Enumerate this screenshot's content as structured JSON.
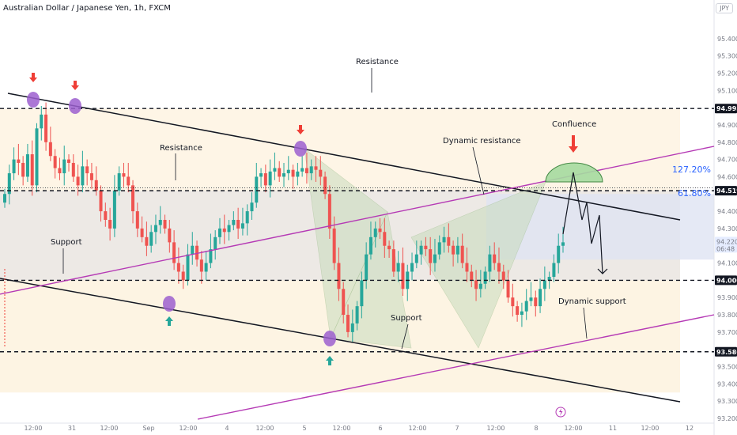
{
  "header": {
    "title": "Australian Dollar / Japanese Yen, 1h, FXCM"
  },
  "currency": "JPY",
  "colors": {
    "up": "#26a69a",
    "down": "#ef5350",
    "band_top": "#fdf1dc",
    "band_mid": "#e9e4df",
    "band_bottom": "#fdf1dc",
    "fib_band": "#dfe4f2",
    "channel": "#131722",
    "purple_line": "#b53ab5",
    "marker": "#9c5fcf",
    "arrow_red": "#ef3e36",
    "arrow_green": "#26a69a",
    "pattern_fill": "#c8dbbd",
    "confluence_fill": "#a6dba0",
    "price_tag": "#131722",
    "current_tag": "#2962ff"
  },
  "chart_data": {
    "type": "candlestick",
    "title": "Australian Dollar / Japanese Yen, 1h, FXCM",
    "ylim": [
      93.2,
      95.5
    ],
    "y_ticks": [
      "95.400",
      "95.300",
      "95.200",
      "95.100",
      "94.900",
      "94.800",
      "94.700",
      "94.600",
      "94.400",
      "94.300",
      "94.100",
      "93.900",
      "93.800",
      "93.700",
      "93.500",
      "93.400",
      "93.300",
      "93.200"
    ],
    "x_ticks": [
      "12:00",
      "31",
      "12:00",
      "Sep",
      "12:00",
      "4",
      "12:00",
      "5",
      "12:00",
      "6",
      "12:00",
      "7",
      "12:00",
      "8",
      "12:00",
      "11",
      "12:00",
      "12"
    ],
    "price_tags": [
      {
        "label": "94.995",
        "value": 94.995
      },
      {
        "label": "94.519",
        "value": 94.519
      },
      {
        "label": "94.000",
        "value": 94.0
      },
      {
        "label": "93.586",
        "value": 93.586
      }
    ],
    "current_price": {
      "label": "94.220",
      "countdown": "06:48",
      "value": 94.22
    },
    "fib_levels": [
      {
        "label": "127.20%",
        "value": 94.58
      },
      {
        "label": "61.80%",
        "value": 94.39
      }
    ],
    "annotations": [
      "Resistance",
      "Resistance",
      "Support",
      "Support",
      "Dynamic resistance",
      "Confluence",
      "Dynamic support"
    ],
    "horizontal_levels": [
      94.995,
      94.519,
      94.0,
      93.586
    ],
    "candles_close_path": [
      94.5,
      94.62,
      94.7,
      94.68,
      94.6,
      94.73,
      94.55,
      94.88,
      94.96,
      94.8,
      94.72,
      94.65,
      94.62,
      94.7,
      94.68,
      94.6,
      94.55,
      94.66,
      94.62,
      94.58,
      94.52,
      94.4,
      94.35,
      94.3,
      94.52,
      94.62,
      94.6,
      94.55,
      94.4,
      94.3,
      94.25,
      94.2,
      94.28,
      94.32,
      94.35,
      94.3,
      94.22,
      94.1,
      94.05,
      94.0,
      94.15,
      94.2,
      94.12,
      94.05,
      94.1,
      94.18,
      94.25,
      94.3,
      94.28,
      94.32,
      94.35,
      94.3,
      94.33,
      94.4,
      94.45,
      94.6,
      94.62,
      94.55,
      94.63,
      94.65,
      94.6,
      94.62,
      94.64,
      94.6,
      94.63,
      94.65,
      94.62,
      94.66,
      94.64,
      94.6,
      94.5,
      94.3,
      94.1,
      93.95,
      93.8,
      93.7,
      93.75,
      93.85,
      94.0,
      94.15,
      94.25,
      94.3,
      94.28,
      94.2,
      94.18,
      94.05,
      94.1,
      93.95,
      94.05,
      94.1,
      94.15,
      94.2,
      94.18,
      94.1,
      94.15,
      94.22,
      94.25,
      94.2,
      94.15,
      94.2,
      94.1,
      94.05,
      94.0,
      93.95,
      93.98,
      94.05,
      94.15,
      94.1,
      94.05,
      94.0,
      93.9,
      93.85,
      93.8,
      93.82,
      93.88,
      93.9,
      93.85,
      93.95,
      94.0,
      94.02,
      94.1,
      94.2,
      94.22
    ]
  }
}
